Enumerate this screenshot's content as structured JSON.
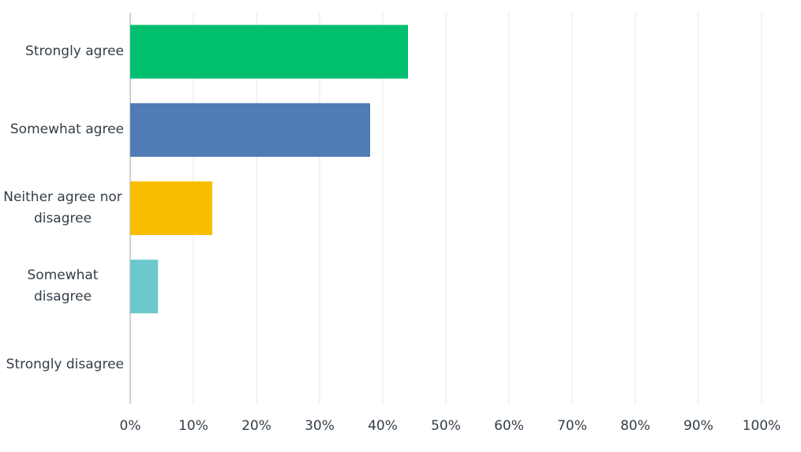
{
  "chart_data": {
    "type": "bar",
    "orientation": "horizontal",
    "categories": [
      "Strongly agree",
      "Somewhat agree",
      "Neither agree nor disagree",
      "Somewhat disagree",
      "Strongly disagree"
    ],
    "values": [
      44,
      38,
      13,
      4.4,
      0
    ],
    "colors": [
      "#00bf6f",
      "#507cb6",
      "#f9be00",
      "#6bc8cd",
      "#d25f90"
    ],
    "xlim": [
      0,
      100
    ],
    "xticks": [
      {
        "value": 0,
        "label": "0%"
      },
      {
        "value": 10,
        "label": "10%"
      },
      {
        "value": 20,
        "label": "20%"
      },
      {
        "value": 30,
        "label": "30%"
      },
      {
        "value": 40,
        "label": "40%"
      },
      {
        "value": 50,
        "label": "50%"
      },
      {
        "value": 60,
        "label": "60%"
      },
      {
        "value": 70,
        "label": "70%"
      },
      {
        "value": 80,
        "label": "80%"
      },
      {
        "value": 90,
        "label": "90%"
      },
      {
        "value": 100,
        "label": "100%"
      }
    ],
    "grid": true
  }
}
